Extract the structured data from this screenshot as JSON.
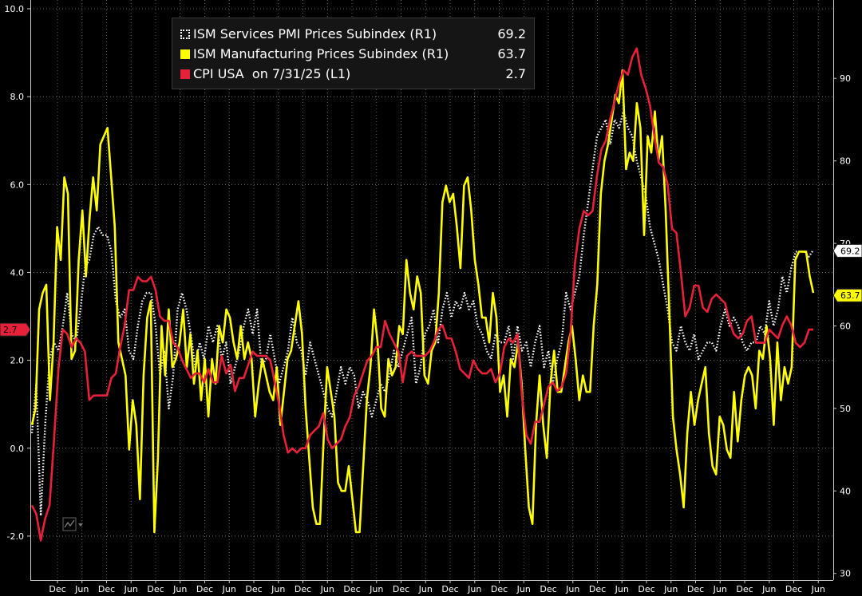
{
  "chart_data": {
    "type": "line",
    "background": "#000000",
    "grid": true,
    "legend_position": "top-left",
    "x_ticks": [
      "Dec",
      "Jun",
      "Dec",
      "Jun",
      "Dec",
      "Jun",
      "Dec",
      "Jun",
      "Dec",
      "Jun",
      "Dec",
      "Jun",
      "Dec",
      "Jun",
      "Dec",
      "Jun",
      "Dec",
      "Jun",
      "Dec",
      "Jun",
      "Dec",
      "Jun",
      "Dec",
      "Jun",
      "Dec",
      "Jun",
      "Dec",
      "Jun",
      "Dec",
      "Jun",
      "Dec",
      "Jun"
    ],
    "left_axis": {
      "ticks": [
        "10.0",
        "8.0",
        "6.0",
        "4.0",
        "2.0",
        "0.0",
        "-2.0"
      ],
      "tick_values": [
        10,
        8,
        6,
        4,
        2,
        0,
        -2
      ],
      "range": [
        -3.0,
        10.2
      ]
    },
    "right_axis": {
      "ticks": [
        "90",
        "80",
        "70",
        "60",
        "50",
        "40",
        "30"
      ],
      "tick_values": [
        90,
        80,
        70,
        60,
        50,
        40,
        30
      ],
      "range": [
        29.2,
        99.5
      ]
    },
    "series": [
      {
        "name": "ISM Services PMI Prices Subindex (R1)",
        "value_label": "69.2",
        "axis": "right",
        "style": "dotted",
        "color": "#ffffff",
        "values": [
          47,
          53,
          37,
          48,
          56,
          58,
          57,
          60,
          64,
          59,
          58,
          62,
          67,
          68,
          71,
          72,
          71,
          71,
          69,
          63,
          61,
          62,
          57,
          56,
          60,
          63,
          64,
          64,
          60,
          54,
          57,
          50,
          54,
          62,
          64,
          62,
          59,
          55,
          58,
          56,
          60,
          58,
          60,
          56,
          58,
          53,
          55,
          57,
          60,
          62,
          59,
          62,
          55,
          56,
          59,
          56,
          53,
          55,
          57,
          61,
          58,
          57,
          54,
          58,
          56,
          54,
          52,
          50,
          49,
          52,
          55,
          53,
          55,
          54,
          50,
          52,
          51,
          49,
          51,
          53,
          52,
          54,
          57,
          55,
          57,
          59,
          61,
          53,
          55,
          59,
          60,
          62,
          58,
          62,
          64,
          61,
          63,
          62,
          64,
          62,
          63,
          60,
          59,
          57,
          56,
          59,
          58,
          58,
          60,
          56,
          60,
          57,
          58,
          55,
          58,
          60,
          55,
          57,
          53,
          56,
          58,
          64,
          62,
          64,
          66,
          71,
          75,
          79,
          83,
          84,
          85,
          82,
          85,
          84,
          86,
          84,
          83,
          80,
          78,
          76,
          72,
          70,
          68,
          65,
          62,
          58,
          57,
          60,
          58,
          57,
          59,
          56,
          57,
          58,
          58,
          57,
          60,
          62,
          60,
          61,
          60,
          58,
          57,
          58,
          58,
          60,
          59,
          63,
          60,
          62,
          66,
          64,
          67,
          69,
          69,
          69,
          68.4,
          69.2
        ]
      },
      {
        "name": "ISM Manufacturing Prices Subindex (R1)",
        "value_label": "63.7",
        "axis": "right",
        "style": "solid",
        "color": "#ffff00",
        "values": [
          48,
          50,
          62,
          64,
          65,
          51,
          58,
          72,
          68,
          78,
          76,
          56,
          57,
          68,
          74,
          66,
          73,
          78,
          74,
          82,
          83,
          84,
          78,
          72,
          58,
          56,
          54,
          45,
          51,
          48,
          39,
          54,
          61,
          63,
          35,
          44,
          60,
          54,
          62,
          55,
          56,
          58,
          62,
          55,
          59,
          53,
          57,
          51,
          56,
          49,
          56,
          53,
          60,
          58,
          62,
          61,
          58,
          56,
          60,
          56,
          58,
          56,
          49,
          53,
          56,
          54,
          52,
          51,
          55,
          48,
          52,
          56,
          57,
          60,
          63,
          59,
          50,
          44,
          38,
          36,
          36,
          46,
          55,
          52,
          49,
          41,
          40,
          40,
          43,
          39,
          35,
          35,
          43,
          51,
          55,
          62,
          58,
          50,
          49,
          56,
          54,
          55,
          60,
          59,
          68,
          64,
          62,
          66,
          64,
          54,
          53,
          57,
          58,
          64,
          75,
          77,
          75,
          76,
          72,
          67,
          77,
          78,
          74,
          68,
          65,
          61,
          61,
          58,
          64,
          61,
          52,
          54,
          49,
          56,
          55,
          58,
          53,
          45,
          38,
          36,
          48,
          54,
          48,
          44,
          53,
          57,
          52,
          52,
          55,
          58,
          60,
          56,
          51,
          54,
          52,
          52,
          60,
          65,
          76,
          80,
          82,
          85,
          88,
          87,
          91,
          79,
          81,
          80,
          87,
          84,
          71,
          83,
          81,
          86,
          80,
          83,
          74,
          62,
          49,
          45,
          42,
          38,
          47,
          52,
          48,
          51,
          53,
          55,
          47,
          43,
          42,
          49,
          48,
          45,
          44,
          52,
          46,
          51,
          54,
          55,
          54,
          50,
          57,
          56,
          60,
          56,
          48,
          58,
          51,
          55,
          53,
          55,
          68,
          69,
          69,
          69,
          66,
          64
        ]
      },
      {
        "name": "CPI USA  on 7/31/25 (L1)",
        "value_label": "2.7",
        "axis": "left",
        "style": "solid",
        "color": "#e8213a",
        "values": [
          -1.3,
          -1.5,
          -2.1,
          -1.6,
          -1.3,
          0.2,
          1.8,
          2.7,
          2.6,
          2.3,
          2.5,
          2.4,
          2.2,
          1.1,
          1.2,
          1.2,
          1.2,
          1.2,
          1.6,
          1.7,
          2.3,
          2.8,
          3.6,
          3.6,
          3.9,
          3.8,
          3.8,
          3.9,
          3.6,
          3.0,
          2.9,
          2.9,
          2.4,
          2.3,
          2.0,
          1.8,
          1.6,
          1.7,
          1.7,
          1.5,
          1.8,
          1.5,
          1.5,
          2.1,
          1.7,
          1.9,
          1.3,
          1.6,
          1.6,
          1.9,
          2.2,
          2.1,
          2.1,
          2.1,
          2.0,
          1.5,
          1.0,
          0.3,
          -0.1,
          0.0,
          -0.1,
          0.0,
          0.0,
          0.3,
          0.4,
          0.5,
          0.8,
          0.2,
          0.0,
          0.1,
          0.2,
          0.5,
          0.7,
          1.2,
          1.4,
          1.7,
          2.0,
          2.1,
          2.3,
          2.3,
          2.9,
          2.6,
          2.4,
          2.2,
          1.5,
          2.1,
          2.2,
          2.1,
          2.1,
          2.1,
          2.2,
          2.4,
          2.7,
          2.8,
          2.5,
          2.5,
          2.2,
          1.8,
          1.7,
          1.6,
          2.0,
          1.8,
          1.7,
          1.7,
          1.8,
          1.5,
          1.7,
          2.3,
          2.5,
          2.4,
          2.6,
          1.2,
          0.3,
          0.1,
          0.6,
          0.6,
          1.0,
          1.4,
          1.5,
          1.3,
          1.4,
          1.7,
          2.6,
          4.2,
          5.0,
          5.4,
          5.3,
          5.4,
          6.2,
          6.8,
          7.0,
          7.5,
          7.9,
          8.3,
          8.6,
          8.5,
          8.9,
          9.1,
          8.5,
          8.2,
          7.8,
          7.1,
          6.5,
          6.4,
          6.0,
          5.0,
          4.9,
          4.0,
          3.0,
          3.2,
          3.7,
          3.7,
          3.2,
          3.1,
          3.4,
          3.5,
          3.4,
          3.3,
          2.9,
          2.6,
          2.5,
          2.6,
          2.9,
          3.0,
          2.4,
          2.4,
          2.4,
          2.7,
          2.6,
          2.5,
          2.8,
          3.0,
          2.8,
          2.4,
          2.3,
          2.4,
          2.7,
          2.7
        ]
      }
    ]
  }
}
